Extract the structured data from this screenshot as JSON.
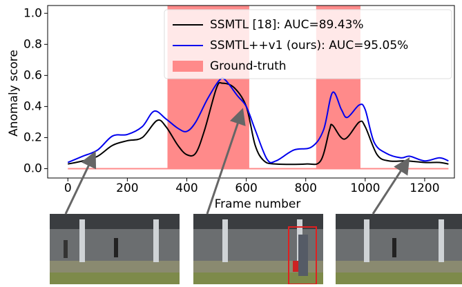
{
  "chart_data": {
    "type": "line",
    "xlabel": "Frame number",
    "ylabel": "Anomaly score",
    "xlim": [
      -68,
      1300
    ],
    "ylim": [
      -0.06,
      1.05
    ],
    "xticks": [
      0,
      200,
      400,
      600,
      800,
      1000,
      1200
    ],
    "yticks": [
      {
        "value": 0,
        "label": "0.0"
      },
      {
        "value": 0.2,
        "label": "0.2"
      },
      {
        "value": 0.4,
        "label": "0.4"
      },
      {
        "value": 0.6,
        "label": "0.6"
      },
      {
        "value": 0.8,
        "label": "0.8"
      },
      {
        "value": 1.0,
        "label": "1.0"
      }
    ],
    "legend": "upper right",
    "ground_truth": {
      "name": "Ground-truth",
      "color": "#ff8a8a",
      "spans": [
        [
          335,
          610
        ],
        [
          835,
          984
        ]
      ]
    },
    "series": [
      {
        "name": "SSMTL [18]: AUC=89.43%",
        "color": "#000000",
        "x": [
          0,
          50,
          100,
          150,
          200,
          250,
          300,
          330,
          370,
          400,
          430,
          460,
          500,
          520,
          560,
          600,
          630,
          660,
          700,
          800,
          850,
          880,
          890,
          930,
          980,
          1000,
          1040,
          1080,
          1140,
          1200,
          1250,
          1280
        ],
        "values": [
          0.03,
          0.05,
          0.08,
          0.15,
          0.18,
          0.2,
          0.31,
          0.27,
          0.15,
          0.09,
          0.1,
          0.25,
          0.52,
          0.55,
          0.52,
          0.4,
          0.15,
          0.05,
          0.03,
          0.03,
          0.05,
          0.25,
          0.28,
          0.19,
          0.3,
          0.27,
          0.09,
          0.05,
          0.05,
          0.04,
          0.04,
          0.03
        ]
      },
      {
        "name": "SSMTL++v1 (ours): AUC=95.05%",
        "color": "#0000ee",
        "x": [
          0,
          50,
          100,
          150,
          200,
          250,
          290,
          330,
          370,
          400,
          430,
          470,
          510,
          530,
          570,
          600,
          630,
          670,
          700,
          760,
          820,
          860,
          890,
          920,
          940,
          980,
          1000,
          1030,
          1070,
          1120,
          1150,
          1200,
          1250,
          1280
        ],
        "values": [
          0.04,
          0.08,
          0.12,
          0.21,
          0.22,
          0.27,
          0.37,
          0.32,
          0.26,
          0.24,
          0.3,
          0.45,
          0.57,
          0.57,
          0.47,
          0.4,
          0.25,
          0.06,
          0.05,
          0.12,
          0.14,
          0.25,
          0.49,
          0.38,
          0.33,
          0.41,
          0.38,
          0.17,
          0.1,
          0.07,
          0.08,
          0.05,
          0.07,
          0.05
        ]
      }
    ]
  }
}
